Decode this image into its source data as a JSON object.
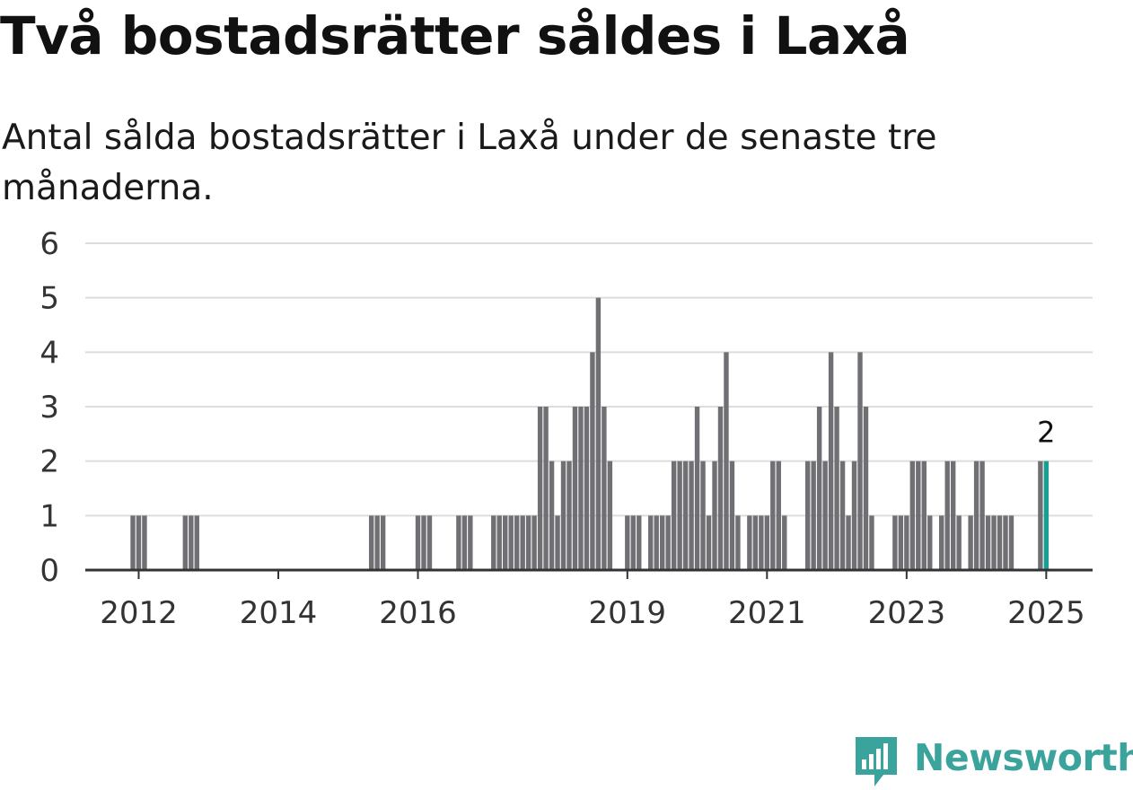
{
  "title": "Två bostadsrätter såldes i Laxå",
  "subtitle": "Antal sålda bostadsrätter i Laxå under de senaste tre månaderna.",
  "brand": {
    "name": "Newsworthy",
    "icon": "bar-chart-speech-icon"
  },
  "colors": {
    "bar": "#707074",
    "highlight": "#1a9e92",
    "grid": "#dddddd",
    "axis": "#333333",
    "brand": "#3aa39c"
  },
  "chart_data": {
    "type": "bar",
    "title": "Två bostadsrätter såldes i Laxå",
    "subtitle": "Antal sålda bostadsrätter i Laxå under de senaste tre månaderna.",
    "xlabel": "",
    "ylabel": "",
    "ylim": [
      0,
      6
    ],
    "yticks": [
      0,
      1,
      2,
      3,
      4,
      5,
      6
    ],
    "grid": true,
    "xticks": [
      {
        "label": "2012",
        "date": "2012-01"
      },
      {
        "label": "2014",
        "date": "2014-01"
      },
      {
        "label": "2016",
        "date": "2016-01"
      },
      {
        "label": "2019",
        "date": "2019-01"
      },
      {
        "label": "2021",
        "date": "2021-01"
      },
      {
        "label": "2023",
        "date": "2023-01"
      },
      {
        "label": "2025",
        "date": "2025-01"
      }
    ],
    "annotation": {
      "text": "2",
      "date": "2025-01"
    },
    "highlight_date": "2025-01",
    "bars": [
      {
        "date": "2011-12",
        "value": 1
      },
      {
        "date": "2012-01",
        "value": 1
      },
      {
        "date": "2012-02",
        "value": 1
      },
      {
        "date": "2012-09",
        "value": 1
      },
      {
        "date": "2012-10",
        "value": 1
      },
      {
        "date": "2012-11",
        "value": 1
      },
      {
        "date": "2015-05",
        "value": 1
      },
      {
        "date": "2015-06",
        "value": 1
      },
      {
        "date": "2015-07",
        "value": 1
      },
      {
        "date": "2016-01",
        "value": 1
      },
      {
        "date": "2016-02",
        "value": 1
      },
      {
        "date": "2016-03",
        "value": 1
      },
      {
        "date": "2016-08",
        "value": 1
      },
      {
        "date": "2016-09",
        "value": 1
      },
      {
        "date": "2016-10",
        "value": 1
      },
      {
        "date": "2017-02",
        "value": 1
      },
      {
        "date": "2017-03",
        "value": 1
      },
      {
        "date": "2017-04",
        "value": 1
      },
      {
        "date": "2017-05",
        "value": 1
      },
      {
        "date": "2017-06",
        "value": 1
      },
      {
        "date": "2017-07",
        "value": 1
      },
      {
        "date": "2017-08",
        "value": 1
      },
      {
        "date": "2017-09",
        "value": 1
      },
      {
        "date": "2017-10",
        "value": 3
      },
      {
        "date": "2017-11",
        "value": 3
      },
      {
        "date": "2017-12",
        "value": 2
      },
      {
        "date": "2018-01",
        "value": 1
      },
      {
        "date": "2018-02",
        "value": 2
      },
      {
        "date": "2018-03",
        "value": 2
      },
      {
        "date": "2018-04",
        "value": 3
      },
      {
        "date": "2018-05",
        "value": 3
      },
      {
        "date": "2018-06",
        "value": 3
      },
      {
        "date": "2018-07",
        "value": 4
      },
      {
        "date": "2018-08",
        "value": 5
      },
      {
        "date": "2018-09",
        "value": 3
      },
      {
        "date": "2018-10",
        "value": 2
      },
      {
        "date": "2019-01",
        "value": 1
      },
      {
        "date": "2019-02",
        "value": 1
      },
      {
        "date": "2019-03",
        "value": 1
      },
      {
        "date": "2019-05",
        "value": 1
      },
      {
        "date": "2019-06",
        "value": 1
      },
      {
        "date": "2019-07",
        "value": 1
      },
      {
        "date": "2019-08",
        "value": 1
      },
      {
        "date": "2019-09",
        "value": 2
      },
      {
        "date": "2019-10",
        "value": 2
      },
      {
        "date": "2019-11",
        "value": 2
      },
      {
        "date": "2019-12",
        "value": 2
      },
      {
        "date": "2020-01",
        "value": 3
      },
      {
        "date": "2020-02",
        "value": 2
      },
      {
        "date": "2020-03",
        "value": 1
      },
      {
        "date": "2020-04",
        "value": 2
      },
      {
        "date": "2020-05",
        "value": 3
      },
      {
        "date": "2020-06",
        "value": 4
      },
      {
        "date": "2020-07",
        "value": 2
      },
      {
        "date": "2020-08",
        "value": 1
      },
      {
        "date": "2020-10",
        "value": 1
      },
      {
        "date": "2020-11",
        "value": 1
      },
      {
        "date": "2020-12",
        "value": 1
      },
      {
        "date": "2021-01",
        "value": 1
      },
      {
        "date": "2021-02",
        "value": 2
      },
      {
        "date": "2021-03",
        "value": 2
      },
      {
        "date": "2021-04",
        "value": 1
      },
      {
        "date": "2021-08",
        "value": 2
      },
      {
        "date": "2021-09",
        "value": 2
      },
      {
        "date": "2021-10",
        "value": 3
      },
      {
        "date": "2021-11",
        "value": 2
      },
      {
        "date": "2021-12",
        "value": 4
      },
      {
        "date": "2022-01",
        "value": 3
      },
      {
        "date": "2022-02",
        "value": 2
      },
      {
        "date": "2022-03",
        "value": 1
      },
      {
        "date": "2022-04",
        "value": 2
      },
      {
        "date": "2022-05",
        "value": 4
      },
      {
        "date": "2022-06",
        "value": 3
      },
      {
        "date": "2022-07",
        "value": 1
      },
      {
        "date": "2022-11",
        "value": 1
      },
      {
        "date": "2022-12",
        "value": 1
      },
      {
        "date": "2023-01",
        "value": 1
      },
      {
        "date": "2023-02",
        "value": 2
      },
      {
        "date": "2023-03",
        "value": 2
      },
      {
        "date": "2023-04",
        "value": 2
      },
      {
        "date": "2023-05",
        "value": 1
      },
      {
        "date": "2023-07",
        "value": 1
      },
      {
        "date": "2023-08",
        "value": 2
      },
      {
        "date": "2023-09",
        "value": 2
      },
      {
        "date": "2023-10",
        "value": 1
      },
      {
        "date": "2023-12",
        "value": 1
      },
      {
        "date": "2024-01",
        "value": 2
      },
      {
        "date": "2024-02",
        "value": 2
      },
      {
        "date": "2024-03",
        "value": 1
      },
      {
        "date": "2024-04",
        "value": 1
      },
      {
        "date": "2024-05",
        "value": 1
      },
      {
        "date": "2024-06",
        "value": 1
      },
      {
        "date": "2024-07",
        "value": 1
      },
      {
        "date": "2024-12",
        "value": 2
      },
      {
        "date": "2025-01",
        "value": 2
      }
    ]
  }
}
